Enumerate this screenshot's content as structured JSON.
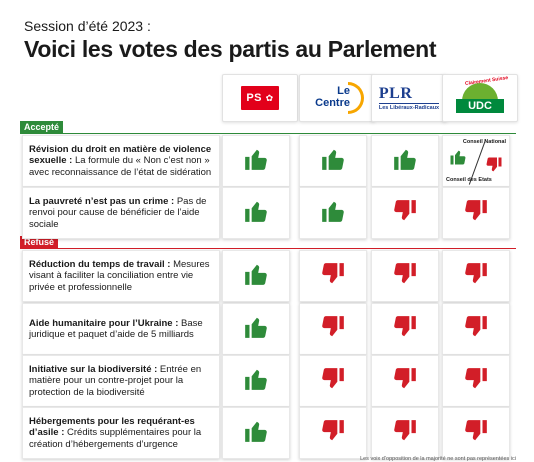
{
  "header": {
    "kicker": "Session d’été 2023 :",
    "title": "Voici les votes des partis au Parlement"
  },
  "parties": {
    "ps": {
      "label": "PS",
      "color": "#e2001a"
    },
    "centre": {
      "line1": "Le",
      "line2": "Centre",
      "color": "#0a3a8c",
      "accent": "#f7a600"
    },
    "plr": {
      "line1": "PLR",
      "line2": "Les Libéraux-Radicaux",
      "color": "#1d3f8f"
    },
    "udc": {
      "label": "UDC",
      "stamp": "Clairement Suisse",
      "color": "#00893d"
    }
  },
  "sections": {
    "accepted": {
      "label": "Accepté",
      "color": "#2e8b3a"
    },
    "refused": {
      "label": "Refusé",
      "color": "#d21e28"
    }
  },
  "rows": [
    {
      "title": "Révision du droit en matière de violence sexuelle :",
      "text": " La formule du « Non c’est non » avec reconnaissance de l’état de sidération",
      "votes": [
        "up",
        "up",
        "up",
        "split"
      ]
    },
    {
      "title": "La pauvreté n’est pas un crime :",
      "text": " Pas de renvoi pour cause de bénéficier de l’aide sociale",
      "votes": [
        "up",
        "up",
        "down",
        "down"
      ]
    },
    {
      "title": "Réduction du temps de travail :",
      "text": " Mesures visant à faciliter la conciliation entre vie privée et professionnelle",
      "votes": [
        "up",
        "down",
        "down",
        "down"
      ]
    },
    {
      "title": "Aide humanitaire pour l’Ukraine :",
      "text": " Base juridique et paquet d’aide de 5 milliards",
      "votes": [
        "up",
        "down",
        "down",
        "down"
      ]
    },
    {
      "title": "Initiative sur la biodiversité :",
      "text": " Entrée en matière pour un contre-projet pour la protection de la biodiversité",
      "votes": [
        "up",
        "down",
        "down",
        "down"
      ]
    },
    {
      "title": "Hébergements pour les requérant-es d’asile :",
      "text": " Crédits supplémentaires pour la création d’hébergements d’urgence",
      "votes": [
        "up",
        "down",
        "down",
        "down"
      ]
    }
  ],
  "split": {
    "upper": "Conseil National",
    "lower": "Conseil des Etats"
  },
  "icons": {
    "yes": "thumb-up-icon",
    "no": "thumb-down-icon"
  },
  "colors": {
    "yes": "#2e8b3a",
    "no": "#d21e28"
  },
  "footnote": "Les voix d’opposition de la majorité ne sont pas représentées ici"
}
